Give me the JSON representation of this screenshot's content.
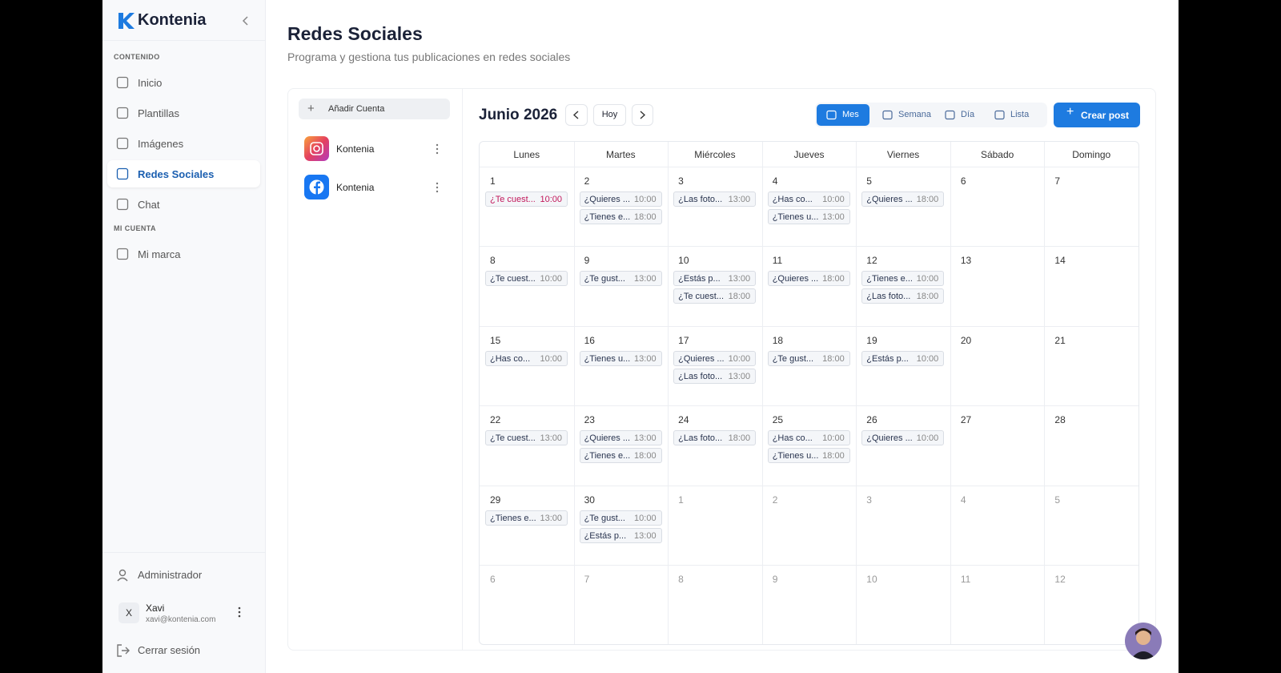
{
  "sidebar": {
    "brand": "Kontenia",
    "sections": [
      {
        "title": "CONTENIDO",
        "items": [
          {
            "label": "Inicio"
          },
          {
            "label": "Plantillas"
          },
          {
            "label": "Imágenes"
          },
          {
            "label": "Redes Sociales",
            "active": true
          },
          {
            "label": "Chat"
          }
        ]
      },
      {
        "title": "MI CUENTA",
        "items": [
          {
            "label": "Mi marca"
          }
        ]
      }
    ],
    "admin": "Administrador",
    "user": {
      "initial": "X",
      "name": "Xavi",
      "email": "xavi@kontenia.com"
    },
    "logout": "Cerrar sesión"
  },
  "header": {
    "title": "Redes Sociales",
    "subtitle": "Programa y gestiona tus publicaciones en redes sociales"
  },
  "accounts": {
    "add": "Añadir Cuenta",
    "items": [
      {
        "network": "instagram",
        "name": "Kontenia"
      },
      {
        "network": "facebook",
        "name": "Kontenia"
      }
    ]
  },
  "calendar": {
    "month": "Junio 2026",
    "today": "Hoy",
    "views": [
      {
        "label": "Mes",
        "active": true
      },
      {
        "label": "Semana"
      },
      {
        "label": "Día"
      },
      {
        "label": "Lista"
      }
    ],
    "create": "Crear post",
    "weekdays": [
      "Lunes",
      "Martes",
      "Miércoles",
      "Jueves",
      "Viernes",
      "Sábado",
      "Domingo"
    ],
    "weeks": [
      [
        {
          "day": "1",
          "events": [
            {
              "title": "¿Te cuest...",
              "time": "10:00",
              "color": "#c2185b"
            }
          ]
        },
        {
          "day": "2",
          "events": [
            {
              "title": "¿Quieres ...",
              "time": "10:00"
            },
            {
              "title": "¿Tienes e...",
              "time": "18:00"
            }
          ]
        },
        {
          "day": "3",
          "events": [
            {
              "title": "¿Las foto...",
              "time": "13:00"
            }
          ]
        },
        {
          "day": "4",
          "events": [
            {
              "title": "¿Has co...",
              "time": "10:00"
            },
            {
              "title": "¿Tienes u...",
              "time": "13:00"
            }
          ]
        },
        {
          "day": "5",
          "events": [
            {
              "title": "¿Quieres ...",
              "time": "18:00"
            }
          ]
        },
        {
          "day": "6",
          "events": []
        },
        {
          "day": "7",
          "events": []
        }
      ],
      [
        {
          "day": "8",
          "events": [
            {
              "title": "¿Te cuest...",
              "time": "10:00"
            }
          ]
        },
        {
          "day": "9",
          "events": [
            {
              "title": "¿Te gust...",
              "time": "13:00"
            }
          ]
        },
        {
          "day": "10",
          "events": [
            {
              "title": "¿Estás p...",
              "time": "13:00"
            },
            {
              "title": "¿Te cuest...",
              "time": "18:00"
            }
          ]
        },
        {
          "day": "11",
          "events": [
            {
              "title": "¿Quieres ...",
              "time": "18:00"
            }
          ]
        },
        {
          "day": "12",
          "events": [
            {
              "title": "¿Tienes e...",
              "time": "10:00"
            },
            {
              "title": "¿Las foto...",
              "time": "18:00"
            }
          ]
        },
        {
          "day": "13",
          "events": []
        },
        {
          "day": "14",
          "events": []
        }
      ],
      [
        {
          "day": "15",
          "events": [
            {
              "title": "¿Has co...",
              "time": "10:00"
            }
          ]
        },
        {
          "day": "16",
          "events": [
            {
              "title": "¿Tienes u...",
              "time": "13:00"
            }
          ]
        },
        {
          "day": "17",
          "events": [
            {
              "title": "¿Quieres ...",
              "time": "10:00"
            },
            {
              "title": "¿Las foto...",
              "time": "13:00"
            }
          ]
        },
        {
          "day": "18",
          "events": [
            {
              "title": "¿Te gust...",
              "time": "18:00"
            }
          ]
        },
        {
          "day": "19",
          "events": [
            {
              "title": "¿Estás p...",
              "time": "10:00"
            }
          ]
        },
        {
          "day": "20",
          "events": []
        },
        {
          "day": "21",
          "events": []
        }
      ],
      [
        {
          "day": "22",
          "events": [
            {
              "title": "¿Te cuest...",
              "time": "13:00"
            }
          ]
        },
        {
          "day": "23",
          "events": [
            {
              "title": "¿Quieres ...",
              "time": "13:00"
            },
            {
              "title": "¿Tienes e...",
              "time": "18:00"
            }
          ]
        },
        {
          "day": "24",
          "events": [
            {
              "title": "¿Las foto...",
              "time": "18:00"
            }
          ]
        },
        {
          "day": "25",
          "events": [
            {
              "title": "¿Has co...",
              "time": "10:00"
            },
            {
              "title": "¿Tienes u...",
              "time": "18:00"
            }
          ]
        },
        {
          "day": "26",
          "events": [
            {
              "title": "¿Quieres ...",
              "time": "10:00"
            }
          ]
        },
        {
          "day": "27",
          "events": []
        },
        {
          "day": "28",
          "events": []
        }
      ],
      [
        {
          "day": "29",
          "events": [
            {
              "title": "¿Tienes e...",
              "time": "13:00"
            }
          ]
        },
        {
          "day": "30",
          "events": [
            {
              "title": "¿Te gust...",
              "time": "10:00"
            },
            {
              "title": "¿Estás p...",
              "time": "13:00"
            }
          ]
        },
        {
          "day": "1",
          "outside": true,
          "events": []
        },
        {
          "day": "2",
          "outside": true,
          "events": []
        },
        {
          "day": "3",
          "outside": true,
          "events": []
        },
        {
          "day": "4",
          "outside": true,
          "events": []
        },
        {
          "day": "5",
          "outside": true,
          "events": []
        }
      ],
      [
        {
          "day": "6",
          "outside": true,
          "events": []
        },
        {
          "day": "7",
          "outside": true,
          "events": []
        },
        {
          "day": "8",
          "outside": true,
          "events": []
        },
        {
          "day": "9",
          "outside": true,
          "events": []
        },
        {
          "day": "10",
          "outside": true,
          "events": []
        },
        {
          "day": "11",
          "outside": true,
          "events": []
        },
        {
          "day": "12",
          "outside": true,
          "events": []
        }
      ]
    ]
  }
}
